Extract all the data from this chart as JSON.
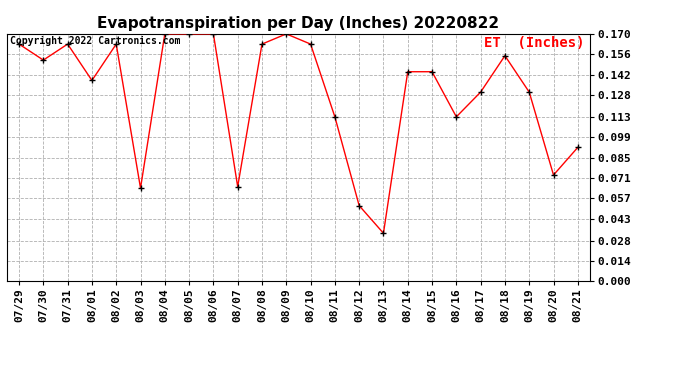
{
  "title": "Evapotranspiration per Day (Inches) 20220822",
  "legend_label": "ET  (Inches)",
  "copyright": "Copyright 2022 Cartronics.com",
  "dates": [
    "07/29",
    "07/30",
    "07/31",
    "08/01",
    "08/02",
    "08/03",
    "08/04",
    "08/05",
    "08/06",
    "08/07",
    "08/08",
    "08/09",
    "08/10",
    "08/11",
    "08/12",
    "08/13",
    "08/14",
    "08/15",
    "08/16",
    "08/17",
    "08/18",
    "08/19",
    "08/20",
    "08/21"
  ],
  "values": [
    0.163,
    0.152,
    0.163,
    0.138,
    0.163,
    0.064,
    0.17,
    0.17,
    0.17,
    0.065,
    0.163,
    0.17,
    0.163,
    0.113,
    0.052,
    0.033,
    0.144,
    0.144,
    0.113,
    0.13,
    0.155,
    0.13,
    0.073,
    0.092
  ],
  "yticks": [
    0.0,
    0.014,
    0.028,
    0.043,
    0.057,
    0.071,
    0.085,
    0.099,
    0.113,
    0.128,
    0.142,
    0.156,
    0.17
  ],
  "ylim": [
    0.0,
    0.17
  ],
  "line_color": "red",
  "marker_color": "black",
  "background_color": "#ffffff",
  "grid_color": "#b0b0b0",
  "title_fontsize": 11,
  "tick_fontsize": 8,
  "copyright_fontsize": 7,
  "legend_fontsize": 10
}
